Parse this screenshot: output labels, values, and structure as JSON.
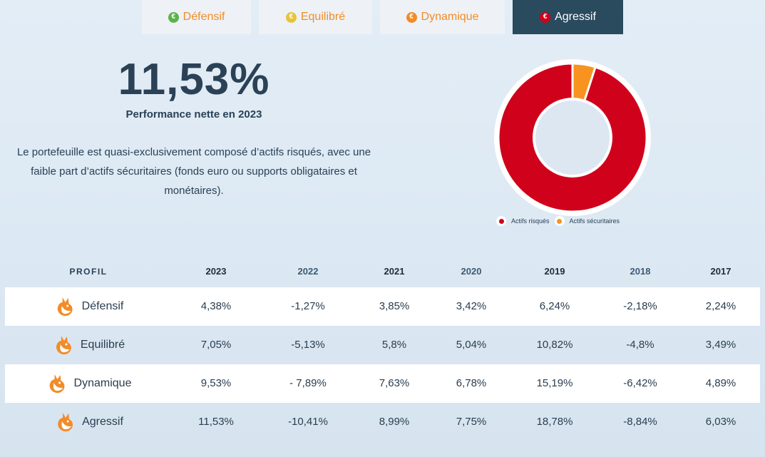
{
  "tabs": [
    {
      "label": "Défensif",
      "icon": "defensif-icon",
      "color": "#5bb34a",
      "active": false
    },
    {
      "label": "Equilibré",
      "icon": "equilibre-icon",
      "color": "#e8c33a",
      "active": false
    },
    {
      "label": "Dynamique",
      "icon": "dynamique-icon",
      "color": "#f28c28",
      "active": false
    },
    {
      "label": "Agressif",
      "icon": "agressif-icon",
      "color": "#d0021b",
      "active": true
    }
  ],
  "hero": {
    "value": "11,53%",
    "label": "Performance nette en 2023",
    "description": "Le portefeuille est quasi-exclusivement composé d’actifs risqués, avec une faible part d’actifs sécuritaires (fonds euro ou supports obligataires et monétaires)."
  },
  "chart_data": {
    "type": "pie",
    "subtype": "donut",
    "title": "",
    "slices": [
      {
        "label": "Actifs risqués",
        "value": 95,
        "color": "#d0021b"
      },
      {
        "label": "Actifs sécuritaires",
        "value": 5,
        "color": "#f7931e"
      }
    ],
    "legend_position": "bottom"
  },
  "table": {
    "headers": [
      "PROFIL",
      "2023",
      "2022",
      "2021",
      "2020",
      "2019",
      "2018",
      "2017"
    ],
    "rows": [
      {
        "profile": "Défensif",
        "values": [
          "4,38%",
          "-1,27%",
          "3,85%",
          "3,42%",
          "6,24%",
          "-2,18%",
          "2,24%"
        ]
      },
      {
        "profile": "Equilibré",
        "values": [
          "7,05%",
          "-5,13%",
          "5,8%",
          "5,04%",
          "10,82%",
          "-4,8%",
          "3,49%"
        ]
      },
      {
        "profile": "Dynamique",
        "values": [
          "9,53%",
          "- 7,89%",
          "7,63%",
          "6,78%",
          "15,19%",
          "-6,42%",
          "4,89%"
        ]
      },
      {
        "profile": "Agressif",
        "values": [
          "11,53%",
          "-10,41%",
          "8,99%",
          "7,75%",
          "18,78%",
          "-8,84%",
          "6,03%"
        ]
      }
    ]
  }
}
